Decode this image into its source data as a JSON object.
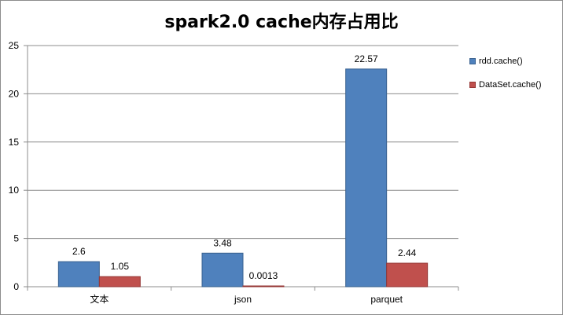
{
  "chart_data": {
    "type": "bar",
    "title": "spark2.0 cache内存占用比",
    "categories": [
      "文本",
      "json",
      "parquet"
    ],
    "series": [
      {
        "name": "rdd.cache()",
        "values": [
          2.6,
          3.48,
          22.57
        ],
        "labels": [
          "2.6",
          "3.48",
          "22.57"
        ],
        "color": "#4f81bd",
        "border": "#3a6290"
      },
      {
        "name": "DataSet.cache()",
        "values": [
          1.05,
          0.0013,
          2.44
        ],
        "labels": [
          "1.05",
          "0.0013",
          "2.44"
        ],
        "color": "#c0504d",
        "border": "#943634"
      }
    ],
    "ylim": [
      0,
      25
    ],
    "yticks": [
      0,
      5,
      10,
      15,
      20,
      25
    ],
    "grid": true,
    "legend": "right"
  }
}
